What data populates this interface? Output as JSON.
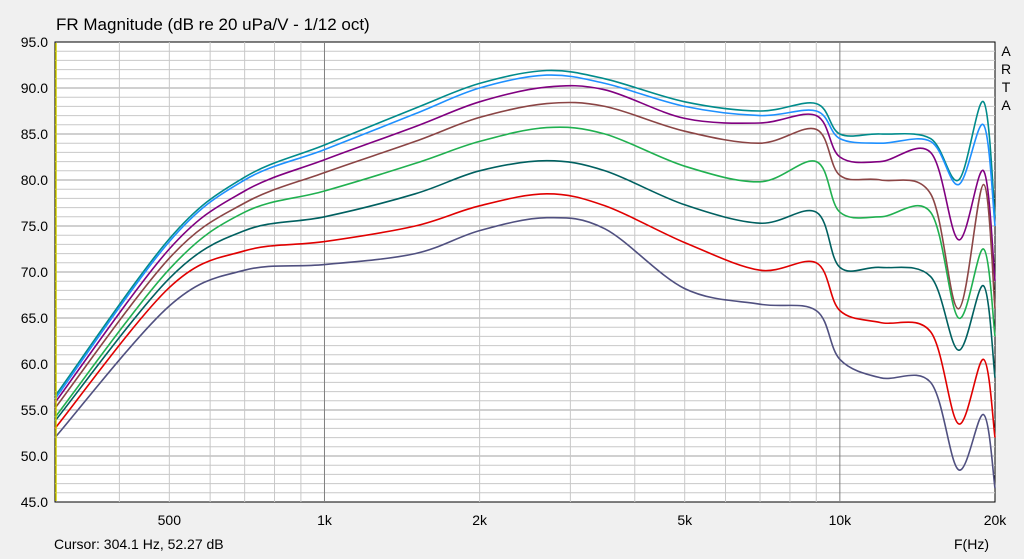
{
  "window": {
    "title": "FR Magnitude (dB re 20 uPa/V - 1/12 oct)",
    "cursor_readout": "Cursor: 304.1 Hz, 52.27 dB",
    "x_unit_label": "F(Hz)",
    "brand_letters": [
      "A",
      "R",
      "T",
      "A"
    ]
  },
  "chart_data": {
    "type": "line",
    "title": "FR Magnitude (dB re 20 uPa/V - 1/12 oct)",
    "xlabel": "F(Hz)",
    "ylabel": "",
    "x_scale": "log",
    "xlim": [
      300,
      20000
    ],
    "ylim": [
      45,
      95
    ],
    "grid": true,
    "legend": "none",
    "background": "#ffffff",
    "grid_color": "#c8c8c8",
    "x_ticks": [
      {
        "value": 500,
        "label": "500"
      },
      {
        "value": 1000,
        "label": "1k"
      },
      {
        "value": 2000,
        "label": "2k"
      },
      {
        "value": 5000,
        "label": "5k"
      },
      {
        "value": 10000,
        "label": "10k"
      },
      {
        "value": 20000,
        "label": "20k"
      }
    ],
    "y_ticks": [
      {
        "value": 95,
        "label": "95.0"
      },
      {
        "value": 90,
        "label": "90.0"
      },
      {
        "value": 85,
        "label": "85.0"
      },
      {
        "value": 80,
        "label": "80.0"
      },
      {
        "value": 75,
        "label": "75.0"
      },
      {
        "value": 70,
        "label": "70.0"
      },
      {
        "value": 65,
        "label": "65.0"
      },
      {
        "value": 60,
        "label": "60.0"
      },
      {
        "value": 55,
        "label": "55.0"
      },
      {
        "value": 50,
        "label": "50.0"
      },
      {
        "value": 45,
        "label": "45.0"
      }
    ],
    "x": [
      300,
      500,
      700,
      1000,
      1500,
      2000,
      2700,
      3500,
      5000,
      7000,
      9000,
      10000,
      12000,
      15000,
      17000,
      19000,
      20000
    ],
    "series": [
      {
        "color": "#008b8b",
        "values": [
          56.5,
          73.6,
          80.3,
          83.8,
          87.8,
          90.5,
          91.9,
          91.0,
          88.5,
          87.5,
          88.3,
          85.0,
          85.0,
          84.5,
          80.0,
          88.5,
          76.0
        ]
      },
      {
        "color": "#1e90ff",
        "values": [
          56.2,
          73.3,
          80.0,
          83.3,
          87.2,
          90.0,
          91.4,
          90.5,
          88.0,
          87.0,
          87.5,
          84.5,
          84.0,
          84.2,
          79.5,
          86.0,
          75.0
        ]
      },
      {
        "color": "#800080",
        "values": [
          55.8,
          72.5,
          78.8,
          82.2,
          85.8,
          88.5,
          90.1,
          89.8,
          86.7,
          86.2,
          87.0,
          82.5,
          82.0,
          83.0,
          73.5,
          81.0,
          69.0
        ]
      },
      {
        "color": "#8b4545",
        "values": [
          55.2,
          71.5,
          77.5,
          80.8,
          84.2,
          86.8,
          88.3,
          88.0,
          85.3,
          84.0,
          85.5,
          80.5,
          80.0,
          78.5,
          66.0,
          79.5,
          66.0
        ]
      },
      {
        "color": "#20b050",
        "values": [
          54.2,
          70.3,
          76.5,
          78.8,
          81.8,
          84.2,
          85.7,
          85.0,
          81.5,
          79.8,
          82.0,
          76.5,
          76.0,
          76.5,
          65.0,
          72.5,
          63.0
        ]
      },
      {
        "color": "#006060",
        "values": [
          53.8,
          69.3,
          74.5,
          76.0,
          78.5,
          81.0,
          82.1,
          81.0,
          77.3,
          75.3,
          76.5,
          70.5,
          70.5,
          69.5,
          61.5,
          68.5,
          58.5
        ]
      },
      {
        "color": "#e00000",
        "values": [
          53.0,
          68.3,
          72.3,
          73.3,
          75.0,
          77.2,
          78.5,
          77.2,
          73.2,
          70.2,
          71.0,
          65.8,
          64.5,
          63.5,
          53.5,
          60.5,
          52.0
        ]
      },
      {
        "color": "#505080",
        "values": [
          52.0,
          66.3,
          70.2,
          70.8,
          72.0,
          74.5,
          75.9,
          74.7,
          68.2,
          66.5,
          65.8,
          60.5,
          58.5,
          58.0,
          48.5,
          54.5,
          46.5
        ]
      }
    ]
  }
}
